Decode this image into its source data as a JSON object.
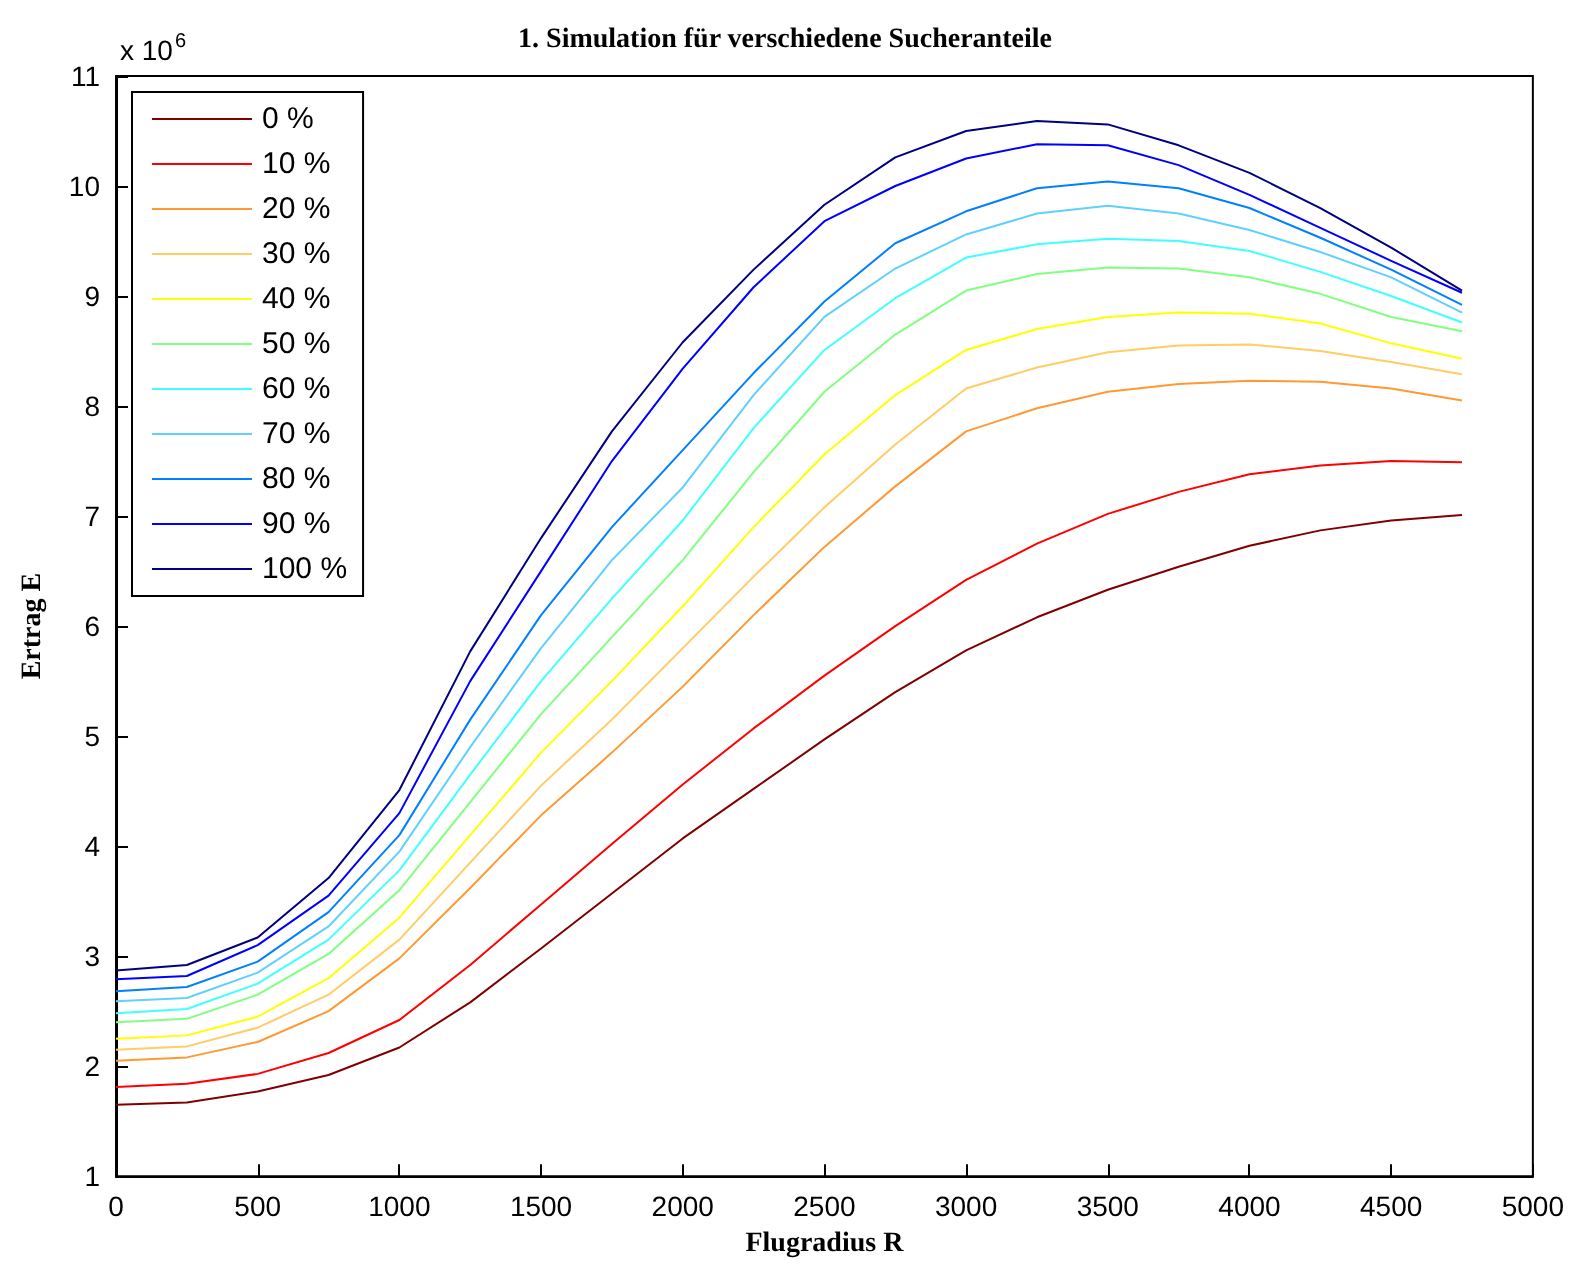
{
  "chart_data": {
    "type": "line",
    "title": "1. Simulation für verschiedene Sucheranteile",
    "xlabel": "Flugradius R",
    "ylabel": "Ertrag E",
    "annotations": [
      "x 10$^{6}$"
    ],
    "x": [
      0,
      250,
      500,
      750,
      1000,
      1250,
      1500,
      1750,
      2000,
      2250,
      2500,
      2750,
      3000,
      3250,
      3500,
      3750,
      4000,
      4250,
      4500,
      4750
    ],
    "xlim": [
      0,
      5000
    ],
    "xticks": [
      0,
      500,
      1000,
      1500,
      2000,
      2500,
      3000,
      3500,
      4000,
      4500,
      5000
    ],
    "ylim": [
      1,
      11
    ],
    "yticks": [
      1,
      2,
      3,
      4,
      5,
      6,
      7,
      8,
      9,
      10,
      11
    ],
    "grid": false,
    "legend": "top left",
    "series": [
      {
        "name": "0 %",
        "color": "#800000",
        "values": [
          1.65,
          1.67,
          1.77,
          1.92,
          2.17,
          2.58,
          3.07,
          3.57,
          4.07,
          4.52,
          4.97,
          5.4,
          5.78,
          6.08,
          6.33,
          6.54,
          6.73,
          6.87,
          6.96,
          7.01
        ]
      },
      {
        "name": "10 %",
        "color": "#ff0000",
        "values": [
          1.81,
          1.84,
          1.93,
          2.12,
          2.42,
          2.92,
          3.47,
          4.02,
          4.56,
          5.07,
          5.55,
          6.0,
          6.42,
          6.75,
          7.02,
          7.22,
          7.38,
          7.46,
          7.5,
          7.49
        ]
      },
      {
        "name": "20 %",
        "color": "#ff9933",
        "values": [
          2.05,
          2.08,
          2.22,
          2.5,
          2.98,
          3.62,
          4.28,
          4.85,
          5.45,
          6.1,
          6.72,
          7.27,
          7.77,
          7.98,
          8.13,
          8.2,
          8.23,
          8.22,
          8.16,
          8.05
        ]
      },
      {
        "name": "30 %",
        "color": "#ffcc66",
        "values": [
          2.15,
          2.18,
          2.35,
          2.65,
          3.15,
          3.85,
          4.55,
          5.15,
          5.8,
          6.45,
          7.08,
          7.65,
          8.16,
          8.35,
          8.49,
          8.55,
          8.56,
          8.5,
          8.4,
          8.29
        ]
      },
      {
        "name": "40 %",
        "color": "#ffff00",
        "values": [
          2.25,
          2.28,
          2.45,
          2.8,
          3.35,
          4.1,
          4.85,
          5.5,
          6.18,
          6.9,
          7.56,
          8.1,
          8.51,
          8.7,
          8.81,
          8.85,
          8.84,
          8.75,
          8.57,
          8.43
        ]
      },
      {
        "name": "50 %",
        "color": "#80ff80",
        "values": [
          2.4,
          2.43,
          2.65,
          3.02,
          3.6,
          4.4,
          5.2,
          5.9,
          6.6,
          7.4,
          8.13,
          8.65,
          9.05,
          9.2,
          9.26,
          9.25,
          9.17,
          9.02,
          8.81,
          8.68
        ]
      },
      {
        "name": "60 %",
        "color": "#40ffff",
        "values": [
          2.48,
          2.52,
          2.75,
          3.15,
          3.78,
          4.65,
          5.5,
          6.25,
          6.96,
          7.8,
          8.51,
          8.98,
          9.35,
          9.47,
          9.52,
          9.5,
          9.41,
          9.22,
          9.0,
          8.76
        ]
      },
      {
        "name": "70 %",
        "color": "#60d0ff",
        "values": [
          2.59,
          2.62,
          2.85,
          3.27,
          3.95,
          4.9,
          5.8,
          6.6,
          7.26,
          8.1,
          8.81,
          9.25,
          9.56,
          9.75,
          9.82,
          9.75,
          9.6,
          9.4,
          9.17,
          8.85
        ]
      },
      {
        "name": "80 %",
        "color": "#0080ff",
        "values": [
          2.68,
          2.72,
          2.95,
          3.4,
          4.1,
          5.15,
          6.1,
          6.9,
          7.6,
          8.3,
          8.95,
          9.48,
          9.77,
          9.98,
          10.04,
          9.98,
          9.8,
          9.53,
          9.24,
          8.92
        ]
      },
      {
        "name": "90 %",
        "color": "#0000ff",
        "values": [
          2.79,
          2.82,
          3.1,
          3.55,
          4.3,
          5.5,
          6.5,
          7.5,
          8.34,
          9.08,
          9.68,
          10.0,
          10.25,
          10.38,
          10.37,
          10.19,
          9.92,
          9.62,
          9.32,
          9.03
        ]
      },
      {
        "name": "100 %",
        "color": "#000080",
        "values": [
          2.87,
          2.92,
          3.17,
          3.71,
          4.51,
          5.77,
          6.8,
          7.77,
          8.58,
          9.24,
          9.83,
          10.26,
          10.5,
          10.59,
          10.56,
          10.37,
          10.12,
          9.8,
          9.44,
          9.05
        ]
      }
    ]
  }
}
